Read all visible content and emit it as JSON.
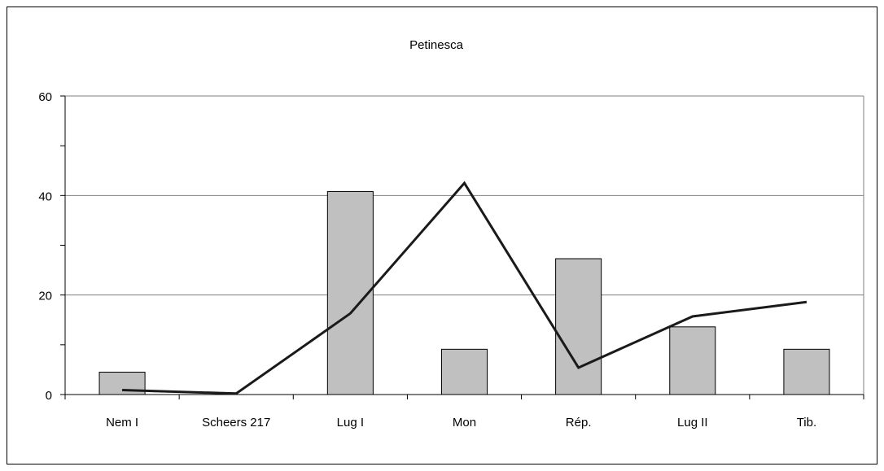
{
  "chart_data": {
    "type": "bar",
    "title": "Petinesca",
    "xlabel": "",
    "ylabel": "",
    "categories": [
      "Nem I",
      "Scheers 217",
      "Lug I",
      "Mon",
      "Rép.",
      "Lug II",
      "Tib."
    ],
    "ylim": [
      0,
      60
    ],
    "yticks": [
      0,
      20,
      40,
      60
    ],
    "grid": true,
    "legend": "none",
    "series": [
      {
        "type": "bar",
        "values": [
          4.5,
          0,
          40.8,
          9.1,
          27.3,
          13.6,
          9.1
        ],
        "color": "#c0c0c0"
      },
      {
        "type": "line",
        "values": [
          0.9,
          0.2,
          16.3,
          42.5,
          5.4,
          15.7,
          18.6
        ],
        "color": "#1a1a1a"
      }
    ]
  }
}
